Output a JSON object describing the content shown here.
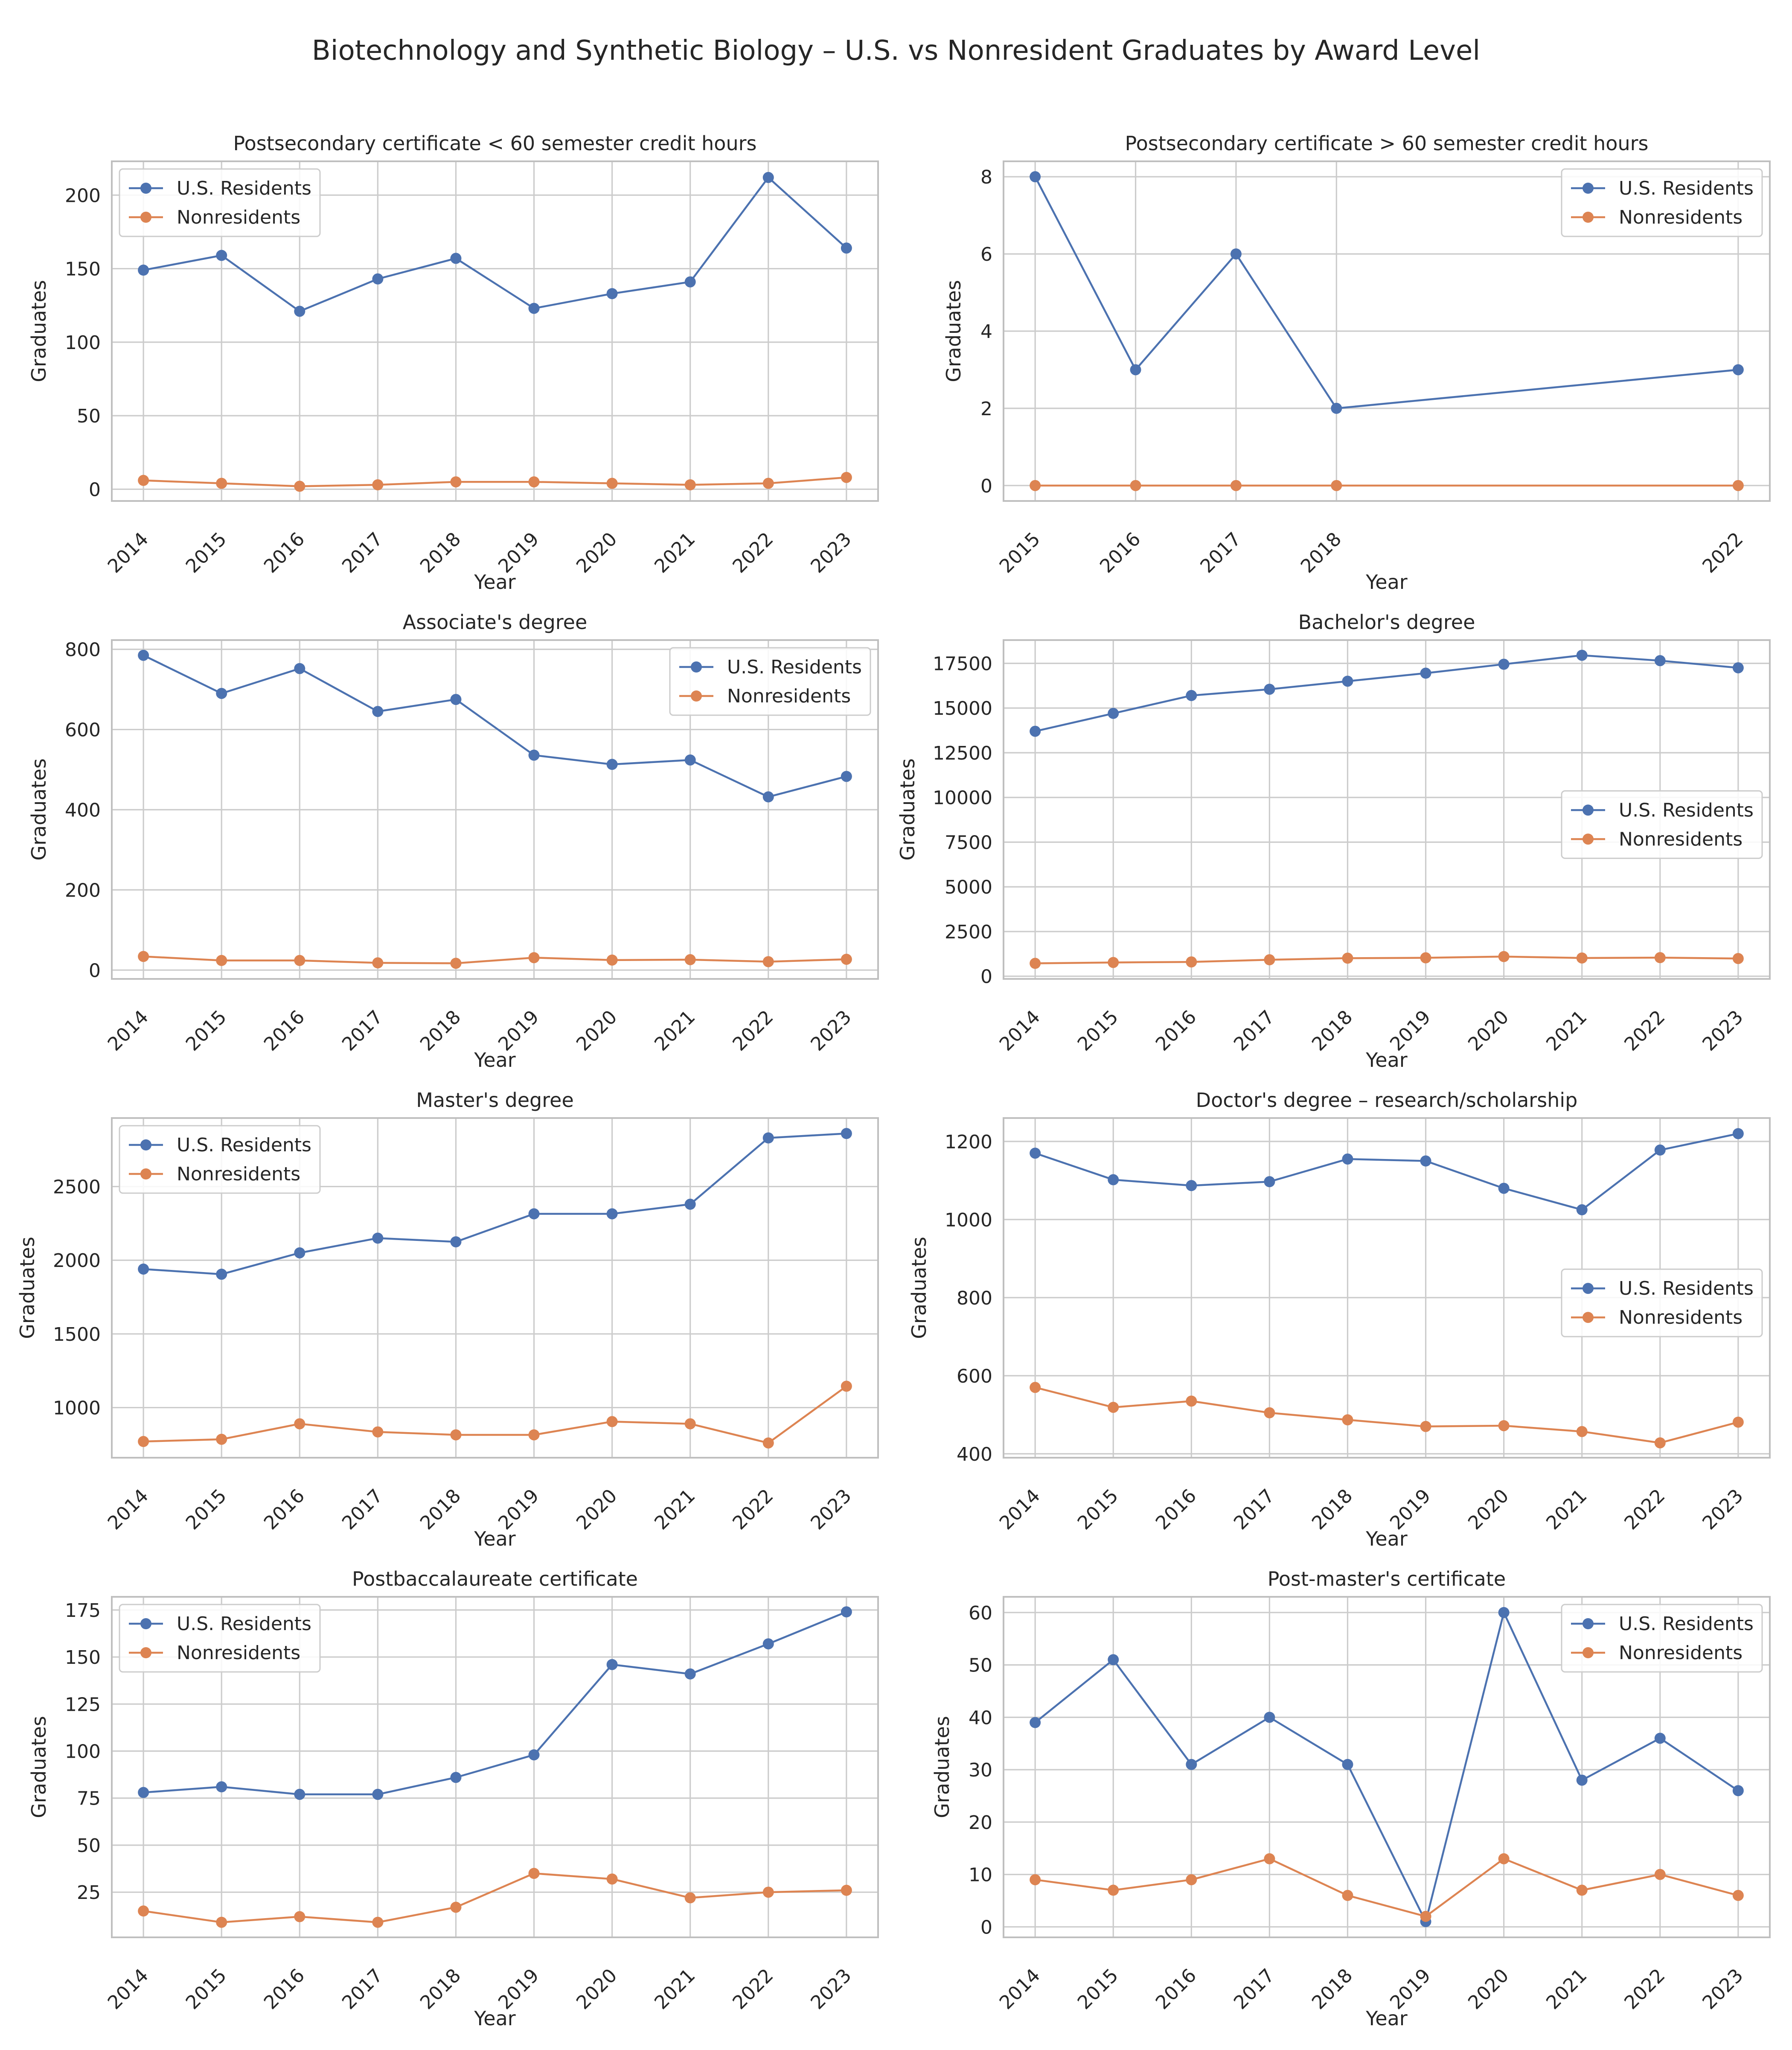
{
  "figure": {
    "title": "Biotechnology and Synthetic Biology – U.S. vs Nonresident Graduates by Award Level",
    "series_names": [
      "U.S. Residents",
      "Nonresidents"
    ],
    "colors": {
      "us": "#4c72b0",
      "nonres": "#dd8452",
      "grid": "#cccccc",
      "axis": "#bfbfbf",
      "text": "#262626"
    }
  },
  "chart_data": [
    {
      "type": "line",
      "title": "Postsecondary certificate < 60 semester credit hours",
      "xlabel": "Year",
      "ylabel": "Graduates",
      "x": [
        2014,
        2015,
        2016,
        2017,
        2018,
        2019,
        2020,
        2021,
        2022,
        2023
      ],
      "series": [
        {
          "name": "U.S. Residents",
          "values": [
            149,
            159,
            121,
            143,
            157,
            123,
            133,
            141,
            212,
            164
          ]
        },
        {
          "name": "Nonresidents",
          "values": [
            6,
            4,
            2,
            3,
            5,
            5,
            4,
            3,
            4,
            8
          ]
        }
      ],
      "ylim": [
        -8,
        223
      ],
      "yticks": [
        0,
        50,
        100,
        150,
        200
      ],
      "legend": "upper-left",
      "grid": true
    },
    {
      "type": "line",
      "title": "Postsecondary certificate > 60 semester credit hours",
      "xlabel": "Year",
      "ylabel": "Graduates",
      "x": [
        2015,
        2016,
        2017,
        2018,
        2022
      ],
      "series": [
        {
          "name": "U.S. Residents",
          "values": [
            8,
            3,
            6,
            2,
            3
          ]
        },
        {
          "name": "Nonresidents",
          "values": [
            0,
            0,
            0,
            0,
            0
          ]
        }
      ],
      "ylim": [
        -0.4,
        8.4
      ],
      "yticks": [
        0,
        2,
        4,
        6,
        8
      ],
      "legend": "upper-right",
      "grid": true
    },
    {
      "type": "line",
      "title": "Associate's degree",
      "xlabel": "Year",
      "ylabel": "Graduates",
      "x": [
        2014,
        2015,
        2016,
        2017,
        2018,
        2019,
        2020,
        2021,
        2022,
        2023
      ],
      "series": [
        {
          "name": "U.S. Residents",
          "values": [
            785,
            690,
            752,
            645,
            675,
            536,
            513,
            524,
            432,
            483
          ]
        },
        {
          "name": "Nonresidents",
          "values": [
            34,
            24,
            24,
            18,
            17,
            31,
            25,
            26,
            21,
            27
          ]
        }
      ],
      "ylim": [
        -22,
        823
      ],
      "yticks": [
        0,
        200,
        400,
        600,
        800
      ],
      "legend": "upper-right",
      "grid": true
    },
    {
      "type": "line",
      "title": "Bachelor's degree",
      "xlabel": "Year",
      "ylabel": "Graduates",
      "x": [
        2014,
        2015,
        2016,
        2017,
        2018,
        2019,
        2020,
        2021,
        2022,
        2023
      ],
      "series": [
        {
          "name": "U.S. Residents",
          "values": [
            13700,
            14700,
            15700,
            16050,
            16500,
            16950,
            17450,
            17950,
            17650,
            17250
          ]
        },
        {
          "name": "Nonresidents",
          "values": [
            720,
            770,
            800,
            920,
            1010,
            1030,
            1100,
            1020,
            1040,
            990
          ]
        }
      ],
      "ylim": [
        -150,
        18800
      ],
      "yticks": [
        0,
        2500,
        5000,
        7500,
        10000,
        12500,
        15000,
        17500
      ],
      "legend": "center-right",
      "grid": true
    },
    {
      "type": "line",
      "title": "Master's degree",
      "xlabel": "Year",
      "ylabel": "Graduates",
      "x": [
        2014,
        2015,
        2016,
        2017,
        2018,
        2019,
        2020,
        2021,
        2022,
        2023
      ],
      "series": [
        {
          "name": "U.S. Residents",
          "values": [
            1940,
            1905,
            2050,
            2150,
            2125,
            2315,
            2315,
            2380,
            2830,
            2860
          ]
        },
        {
          "name": "Nonresidents",
          "values": [
            770,
            785,
            890,
            835,
            815,
            815,
            905,
            890,
            760,
            1145
          ]
        }
      ],
      "ylim": [
        660,
        2965
      ],
      "yticks": [
        1000,
        1500,
        2000,
        2500
      ],
      "legend": "upper-left",
      "grid": true
    },
    {
      "type": "line",
      "title": "Doctor's degree – research/scholarship",
      "xlabel": "Year",
      "ylabel": "Graduates",
      "x": [
        2014,
        2015,
        2016,
        2017,
        2018,
        2019,
        2020,
        2021,
        2022,
        2023
      ],
      "series": [
        {
          "name": "U.S. Residents",
          "values": [
            1170,
            1102,
            1087,
            1097,
            1155,
            1150,
            1080,
            1025,
            1178,
            1220
          ]
        },
        {
          "name": "Nonresidents",
          "values": [
            570,
            519,
            535,
            505,
            487,
            470,
            472,
            457,
            428,
            481
          ]
        }
      ],
      "ylim": [
        390,
        1260
      ],
      "yticks": [
        400,
        600,
        800,
        1000,
        1200
      ],
      "legend": "center-right",
      "grid": true
    },
    {
      "type": "line",
      "title": "Postbaccalaureate certificate",
      "xlabel": "Year",
      "ylabel": "Graduates",
      "x": [
        2014,
        2015,
        2016,
        2017,
        2018,
        2019,
        2020,
        2021,
        2022,
        2023
      ],
      "series": [
        {
          "name": "U.S. Residents",
          "values": [
            78,
            81,
            77,
            77,
            86,
            98,
            146,
            141,
            157,
            174
          ]
        },
        {
          "name": "Nonresidents",
          "values": [
            15,
            9,
            12,
            9,
            17,
            35,
            32,
            22,
            25,
            26
          ]
        }
      ],
      "ylim": [
        1,
        182
      ],
      "yticks": [
        25,
        50,
        75,
        100,
        125,
        150,
        175
      ],
      "legend": "upper-left",
      "grid": true
    },
    {
      "type": "line",
      "title": "Post-master's certificate",
      "xlabel": "Year",
      "ylabel": "Graduates",
      "x": [
        2014,
        2015,
        2016,
        2017,
        2018,
        2019,
        2020,
        2021,
        2022,
        2023
      ],
      "series": [
        {
          "name": "U.S. Residents",
          "values": [
            39,
            51,
            31,
            40,
            31,
            1,
            60,
            28,
            36,
            26
          ]
        },
        {
          "name": "Nonresidents",
          "values": [
            9,
            7,
            9,
            13,
            6,
            2,
            13,
            7,
            10,
            6
          ]
        }
      ],
      "ylim": [
        -2,
        63
      ],
      "yticks": [
        0,
        10,
        20,
        30,
        40,
        50,
        60
      ],
      "legend": "upper-right",
      "grid": true
    }
  ]
}
